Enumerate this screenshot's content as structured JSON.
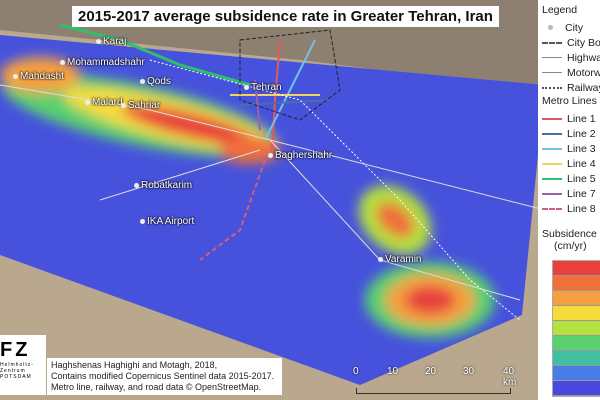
{
  "title": "2015-2017 average subsidence rate in Greater Tehran, Iran",
  "cities": [
    {
      "name": "Karaj"
    },
    {
      "name": "Mohammadshahr"
    },
    {
      "name": "Mahdasht"
    },
    {
      "name": "Qods"
    },
    {
      "name": "Tehran"
    },
    {
      "name": "Malard"
    },
    {
      "name": "Sahriar"
    },
    {
      "name": "Baghershahr"
    },
    {
      "name": "Robatkarim"
    },
    {
      "name": "IKA Airport"
    },
    {
      "name": "Varamin"
    }
  ],
  "legend": {
    "heading": "Legend",
    "items": [
      {
        "label": "City"
      },
      {
        "label": "City Boundary"
      },
      {
        "label": "Highway"
      },
      {
        "label": "Motorway"
      },
      {
        "label": "Railway"
      }
    ],
    "metro_heading": "Metro Lines",
    "metro": [
      {
        "label": "Line 1",
        "color": "#e05a5a"
      },
      {
        "label": "Line 2",
        "color": "#4a6fa8"
      },
      {
        "label": "Line 3",
        "color": "#6ec3e6"
      },
      {
        "label": "Line 4",
        "color": "#f2d45c"
      },
      {
        "label": "Line 5",
        "color": "#2fc06a"
      },
      {
        "label": "Line 7",
        "color": "#9b5fb0"
      },
      {
        "label": "Line 8",
        "color": "#d0607a"
      }
    ],
    "subsidence_heading": "Subsidence",
    "subsidence_unit": "(cm/yr)",
    "ramp_colors": [
      "#e8413c",
      "#f0703a",
      "#f5a040",
      "#f5dc3c",
      "#b4e040",
      "#5ad070",
      "#40c0a0",
      "#4a7ce8",
      "#4848e0"
    ]
  },
  "credit": {
    "line1": "Haghshenas Haghighi and Motagh, 2018,",
    "line2": "Contains modified Copernicus Sentinel data 2015-2017.",
    "line3": "Metro line, railway, and road data © OpenStreetMap."
  },
  "logo": {
    "text": "FZ",
    "sub1": "Helmholtz-Zentrum",
    "sub2": "POTSDAM"
  },
  "scale": {
    "ticks": [
      "0",
      "10",
      "20",
      "30",
      "40 km"
    ]
  }
}
